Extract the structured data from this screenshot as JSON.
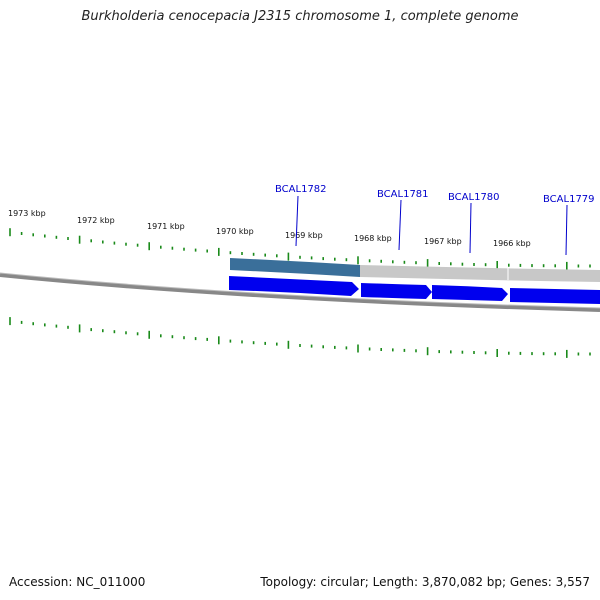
{
  "title": "Burkholderia cenocepacia J2315 chromosome 1, complete genome",
  "footer": {
    "accession": "Accession: NC_011000",
    "summary": "Topology: circular; Length: 3,870,082 bp; Genes: 3,557"
  },
  "kbp_labels": [
    "1973 kbp",
    "1972 kbp",
    "1971 kbp",
    "1970 kbp",
    "1969 kbp",
    "1968 kbp",
    "1967 kbp",
    "1966 kbp"
  ],
  "genes": [
    {
      "name": "BCAL1782"
    },
    {
      "name": "BCAL1781"
    },
    {
      "name": "BCAL1780"
    },
    {
      "name": "BCAL1779"
    }
  ],
  "colors": {
    "tick": "#1a8a1a",
    "backbone": "#888888",
    "gene": "#0000ee",
    "label_line": "#0000cc",
    "highlight_dark": "#3a6f9a",
    "highlight_light": "#c8c8c8"
  }
}
